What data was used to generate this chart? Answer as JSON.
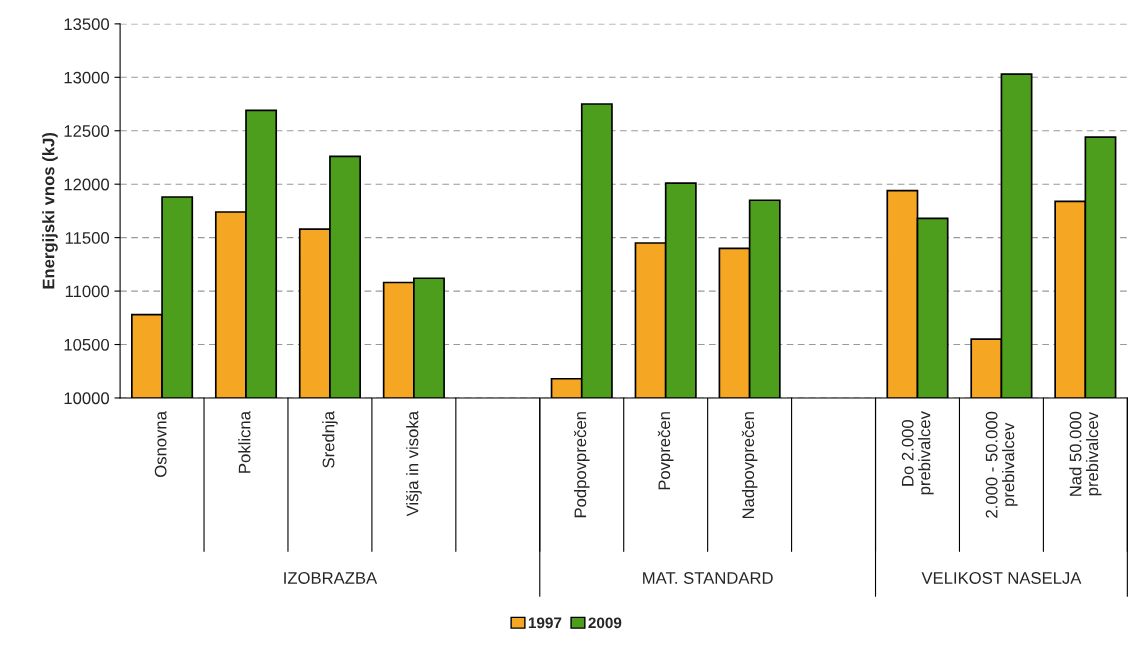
{
  "chart_data": {
    "type": "bar",
    "ylabel": "Energijski vnos (kJ)",
    "categories": [
      "Osnovna",
      "Poklicna",
      "Srednja",
      "Višja in visoka",
      null,
      "Podpovprečen",
      "Povprečen",
      "Nadpovprečen",
      null,
      "Do 2.000\nprebivalcev",
      "2.000 - 50.000\nprebivalcev",
      "Nad 50.000\nprebivalcev"
    ],
    "series": [
      {
        "name": "1997",
        "color": "#f5a623",
        "values": [
          10780,
          11740,
          11580,
          11080,
          null,
          10180,
          11450,
          11400,
          null,
          11940,
          10550,
          11840
        ]
      },
      {
        "name": "2009",
        "color": "#4c9e1c",
        "values": [
          11880,
          12690,
          12260,
          11120,
          null,
          12750,
          12010,
          11850,
          null,
          11680,
          13030,
          12440
        ]
      }
    ],
    "annotations": [
      "IZOBRAZBA",
      "MAT. STANDARD",
      "VELIKOST NASELJA"
    ],
    "ylim": [
      10000,
      13500
    ],
    "yticks": [
      10000,
      10500,
      11000,
      11500,
      12000,
      12500,
      13000,
      13500
    ],
    "grid": "y",
    "legend": "bottom"
  }
}
